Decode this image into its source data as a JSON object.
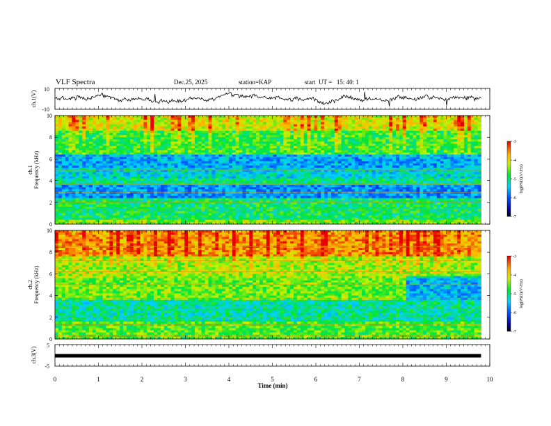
{
  "header": {
    "title": "VLF Spectra",
    "date": "Dec.25, 2025",
    "station": "station=KAP",
    "start": "start  UT =   15: 40: 1"
  },
  "chart_data": {
    "type": "heatmap",
    "x_axis": {
      "label": "Time  (min)",
      "range": [
        0,
        10
      ],
      "ticks": [
        0,
        1,
        2,
        3,
        4,
        5,
        6,
        7,
        8,
        9,
        10
      ],
      "data_end": 9.8
    },
    "panels": [
      {
        "name": "ch.1 waveform",
        "ylabel": "ch.1(V)",
        "type": "line",
        "yrange": [
          -10,
          10
        ],
        "ytick_labels": [
          "10",
          "-10"
        ]
      },
      {
        "name": "ch.1 spectrogram",
        "ylabel_line1": "ch.1",
        "ylabel_line2": "Frequency (kHz)",
        "type": "heatmap",
        "yrange": [
          0,
          10
        ],
        "yticks": [
          0,
          2,
          4,
          6,
          8,
          10
        ],
        "colorbar": {
          "label": "log(PSD)(V²/Hz)",
          "range": [
            -7,
            -3
          ],
          "ticks": [
            "-3",
            "-4",
            "-5",
            "-6",
            "-7"
          ]
        }
      },
      {
        "name": "ch.2 spectrogram",
        "ylabel_line1": "ch.2",
        "ylabel_line2": "Frequency (kHz)",
        "type": "heatmap",
        "yrange": [
          0,
          10
        ],
        "yticks": [
          0,
          2,
          4,
          6,
          8,
          10
        ],
        "colorbar": {
          "label": "log(PSD)(V²/Hz)",
          "range": [
            -7,
            -3
          ],
          "ticks": [
            "-3",
            "-4",
            "-5",
            "-6",
            "-7"
          ]
        }
      },
      {
        "name": "ch.3 waveform",
        "ylabel": "ch.3(V)",
        "type": "line",
        "yrange": [
          -5,
          5
        ],
        "ytick_labels": [
          "5",
          "-5"
        ],
        "level": -0.2
      }
    ]
  },
  "colors": {
    "axis": "#000000",
    "trace": "#000000"
  }
}
